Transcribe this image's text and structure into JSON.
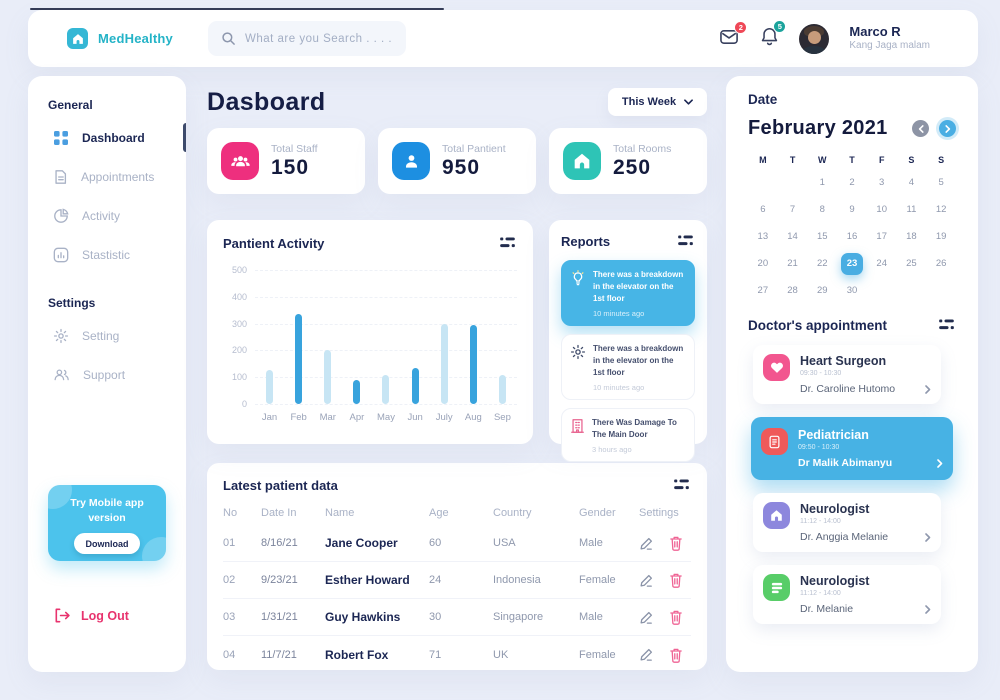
{
  "brand": {
    "name": "MedHealthy"
  },
  "search": {
    "placeholder": "What are you Search . . . ."
  },
  "topbar": {
    "message_badge": "2",
    "bell_badge": "5",
    "user_name": "Marco R",
    "user_subtitle": "Kang Jaga malam"
  },
  "sidebar": {
    "sections": [
      {
        "heading": "General",
        "items": [
          {
            "label": "Dashboard",
            "icon": "dashboard-grid-icon",
            "active": true
          },
          {
            "label": "Appointments",
            "icon": "document-icon",
            "active": false
          },
          {
            "label": "Activity",
            "icon": "pie-chart-icon",
            "active": false
          },
          {
            "label": "Stastistic",
            "icon": "bar-chart-icon",
            "active": false
          }
        ]
      },
      {
        "heading": "Settings",
        "items": [
          {
            "label": "Setting",
            "icon": "gear-icon",
            "active": false
          },
          {
            "label": "Support",
            "icon": "users-icon",
            "active": false
          }
        ]
      }
    ],
    "promo": {
      "title": "Try Mobile app version",
      "button": "Download"
    },
    "logout": "Log Out"
  },
  "main": {
    "title": "Dasboard",
    "period_selector": "This Week",
    "stats": [
      {
        "label": "Total Staff",
        "value": "150",
        "icon": "staff-icon",
        "color": "#ee2f7e"
      },
      {
        "label": "Total Pantient",
        "value": "950",
        "icon": "patient-icon",
        "color": "#1d8fe1"
      },
      {
        "label": "Total Rooms",
        "value": "250",
        "icon": "rooms-icon",
        "color": "#2ec4b6"
      }
    ],
    "reports": {
      "title": "Reports",
      "items": [
        {
          "icon": "lightbulb-icon",
          "icon_color": "#ffffff",
          "text": "There was a breakdown in the elevator on the 1st floor",
          "time": "10 minutes ago",
          "active": true
        },
        {
          "icon": "gear-icon",
          "icon_color": "#444f6d",
          "text": "There was a breakdown in the elevator on the 1st floor",
          "time": "10 minutes ago",
          "active": false
        },
        {
          "icon": "building-icon",
          "icon_color": "#e8638f",
          "text": "There Was Damage To The Main Door",
          "time": "3 hours ago",
          "active": false
        }
      ]
    },
    "table": {
      "title": "Latest patient data",
      "columns": [
        "No",
        "Date In",
        "Name",
        "Age",
        "Country",
        "Gender",
        "Settings"
      ],
      "rows": [
        {
          "no": "01",
          "date_in": "8/16/21",
          "name": "Jane Cooper",
          "age": "60",
          "country": "USA",
          "gender": "Male"
        },
        {
          "no": "02",
          "date_in": "9/23/21",
          "name": "Esther Howard",
          "age": "24",
          "country": "Indonesia",
          "gender": "Female"
        },
        {
          "no": "03",
          "date_in": "1/31/21",
          "name": "Guy Hawkins",
          "age": "30",
          "country": "Singapore",
          "gender": "Male"
        },
        {
          "no": "04",
          "date_in": "11/7/21",
          "name": "Robert Fox",
          "age": "71",
          "country": "UK",
          "gender": "Female"
        }
      ]
    }
  },
  "chart_data": {
    "type": "bar",
    "title": "Pantient Activity",
    "categories": [
      "Jan",
      "Feb",
      "Mar",
      "Apr",
      "May",
      "Jun",
      "July",
      "Aug",
      "Sep"
    ],
    "values": [
      125,
      335,
      200,
      90,
      110,
      135,
      300,
      295,
      110
    ],
    "bar_styles": [
      "light",
      "dark",
      "light",
      "dark",
      "light",
      "dark",
      "light",
      "dark",
      "light"
    ],
    "colors": {
      "light": "#c7e5f4",
      "dark": "#38a3dd"
    },
    "xlabel": "",
    "ylabel": "",
    "yticks": [
      0,
      100,
      200,
      300,
      400,
      500
    ],
    "ylim": [
      0,
      500
    ],
    "grid": true,
    "legend": false
  },
  "calendar": {
    "heading": "Date",
    "month": "February 2021",
    "day_headers": [
      "M",
      "T",
      "W",
      "T",
      "F",
      "S",
      "S"
    ],
    "weeks": [
      [
        "",
        "",
        "1",
        "2",
        "3",
        "4",
        "5"
      ],
      [
        "6",
        "7",
        "8",
        "9",
        "10",
        "11",
        "12"
      ],
      [
        "13",
        "14",
        "15",
        "16",
        "17",
        "18",
        "19"
      ],
      [
        "20",
        "21",
        "22",
        "23",
        "24",
        "25",
        "26"
      ],
      [
        "27",
        "28",
        "29",
        "30",
        "",
        "",
        ""
      ]
    ],
    "selected_day": "23"
  },
  "appointments": {
    "title": "Doctor's appointment",
    "items": [
      {
        "specialty": "Heart Surgeon",
        "time": "09:30 - 10:30",
        "doctor": "Dr. Caroline Hutomo",
        "icon": "heart-icon",
        "icon_color": "#f2568f",
        "active": false
      },
      {
        "specialty": "Pediatrician",
        "time": "09:50 - 10:30",
        "doctor": "Dr Malik Abimanyu",
        "icon": "report-icon",
        "icon_color": "#ef5a5a",
        "active": true
      },
      {
        "specialty": "Neurologist",
        "time": "11:12 - 14:00",
        "doctor": "Dr. Anggia Melanie",
        "icon": "home-icon",
        "icon_color": "#8d87dd",
        "active": false
      },
      {
        "specialty": "Neurologist",
        "time": "11:12 - 14:00",
        "doctor": "Dr.  Melanie",
        "icon": "layers-icon",
        "icon_color": "#58cd68",
        "active": false
      }
    ]
  }
}
